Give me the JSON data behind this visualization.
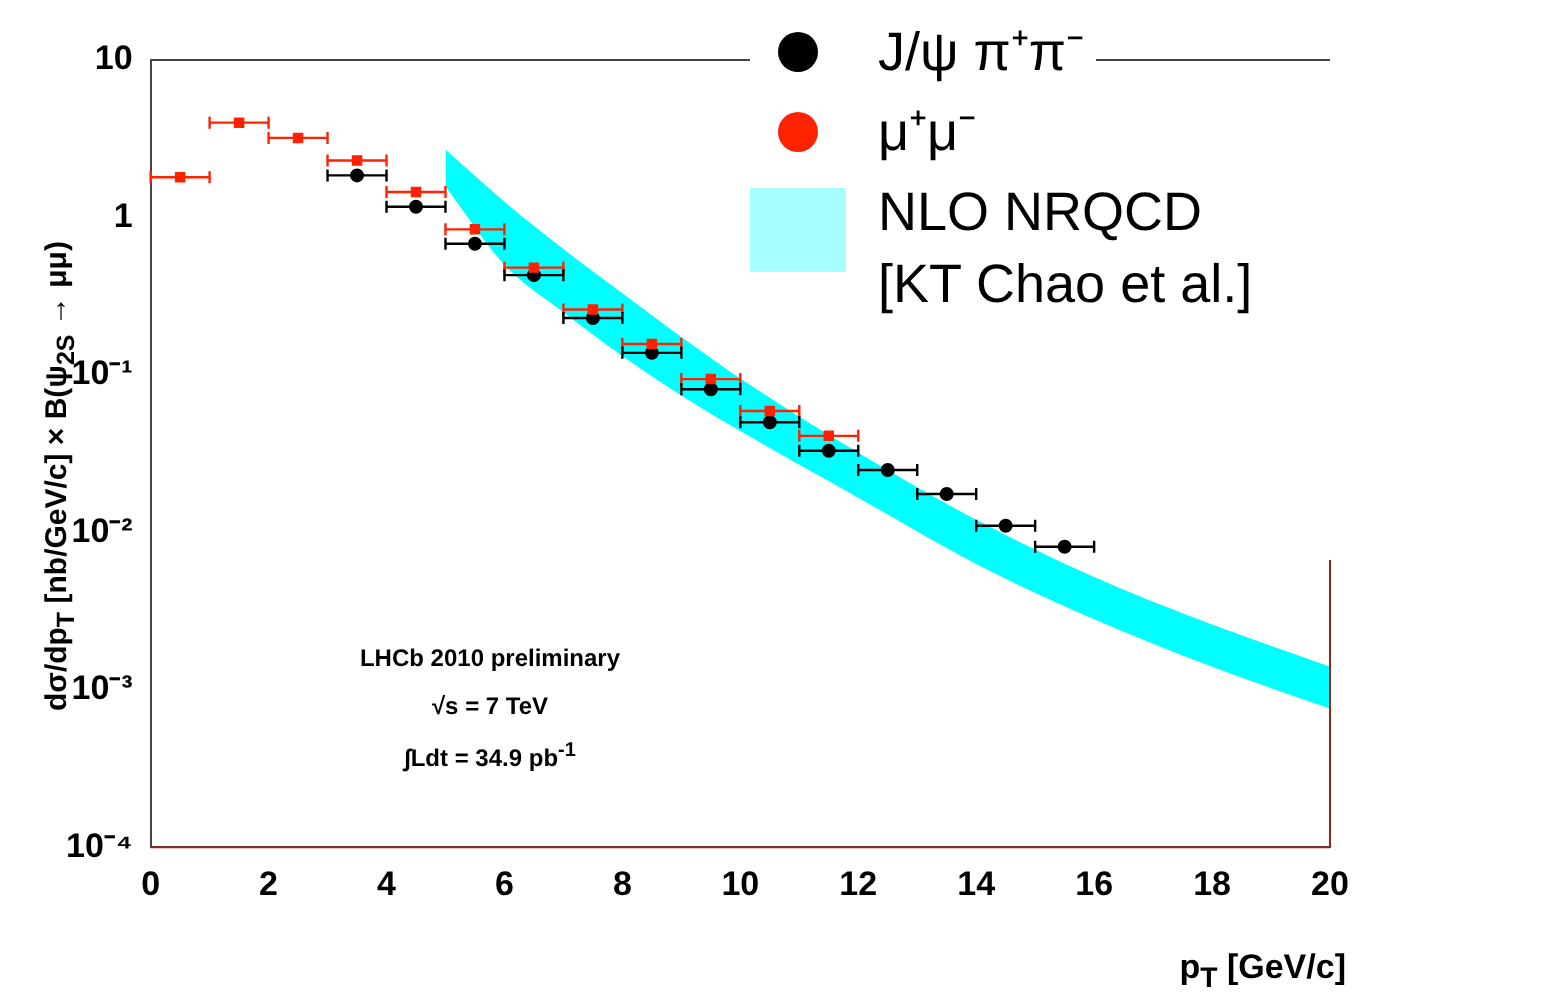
{
  "chart_data": {
    "type": "scatter",
    "xlabel": "p$_{T}$ [GeV/c]",
    "ylabel": "dσ/dp$_{T}$ [nb/GeV/c] × B(ψ$_{2S}$ → μμ)",
    "xlim": [
      0,
      20
    ],
    "xticks": [
      0,
      2,
      4,
      6,
      8,
      10,
      12,
      14,
      16,
      18,
      20
    ],
    "log": "y",
    "ylim": [
      0.0001,
      10
    ],
    "yticks": [
      {
        "value": 0.0001,
        "label": "10⁻⁴"
      },
      {
        "value": 0.001,
        "label": "10⁻³"
      },
      {
        "value": 0.01,
        "label": "10⁻²"
      },
      {
        "value": 0.1,
        "label": "10⁻¹"
      },
      1,
      10
    ],
    "grid": false,
    "legend": "top right",
    "annotations": [
      "LHCb 2010 preliminary",
      "√s = 7 TeV",
      "∫Ldt = 34.9 pb$^{-1}$"
    ],
    "series": [
      {
        "type": "line",
        "name": "NLO NRQCD [KT Chao et al.]",
        "color": "#00ffff",
        "x": [
          5,
          6,
          7,
          8,
          9,
          10,
          12,
          14,
          16,
          18,
          20
        ],
        "values": [
          null,
          null,
          null,
          null,
          null,
          null,
          null,
          null,
          null,
          null,
          null
        ],
        "upper": [
          2.7,
          1.26,
          0.63,
          0.33,
          0.174,
          0.095,
          0.032,
          0.012,
          0.0052,
          0.0026,
          0.0014
        ],
        "lower": [
          1.57,
          0.5,
          0.25,
          0.132,
          0.074,
          0.044,
          0.0166,
          0.0063,
          0.0028,
          0.0014,
          0.00076
        ]
      },
      {
        "type": "scatter",
        "name": "J/ψ π⁺π⁻",
        "color": "#000000",
        "marker": "circle",
        "x": [
          3.5,
          4.5,
          5.5,
          6.5,
          7.5,
          8.5,
          9.5,
          10.5,
          11.5,
          12.5,
          13.5,
          14.5,
          15.5
        ],
        "values": [
          1.85,
          1.17,
          0.68,
          0.43,
          0.23,
          0.138,
          0.081,
          0.05,
          0.033,
          0.0249,
          0.0175,
          0.011,
          0.0081
        ],
        "xerrors": [
          0.5,
          0.5,
          0.5,
          0.5,
          0.5,
          0.5,
          0.5,
          0.5,
          0.5,
          0.5,
          0.5,
          0.5,
          0.5
        ]
      },
      {
        "type": "scatter",
        "name": "μ⁺μ⁻",
        "color": "#ff2200",
        "marker": "square",
        "x": [
          0.5,
          1.5,
          2.5,
          3.5,
          4.5,
          5.5,
          6.5,
          7.5,
          8.5,
          9.5,
          10.5,
          11.5
        ],
        "values": [
          1.8,
          4.0,
          3.2,
          2.3,
          1.45,
          0.84,
          0.48,
          0.26,
          0.157,
          0.094,
          0.059,
          0.041
        ],
        "xerrors": [
          0.5,
          0.5,
          0.5,
          0.5,
          0.5,
          0.5,
          0.5,
          0.5,
          0.5,
          0.5,
          0.5,
          0.5
        ]
      }
    ]
  }
}
